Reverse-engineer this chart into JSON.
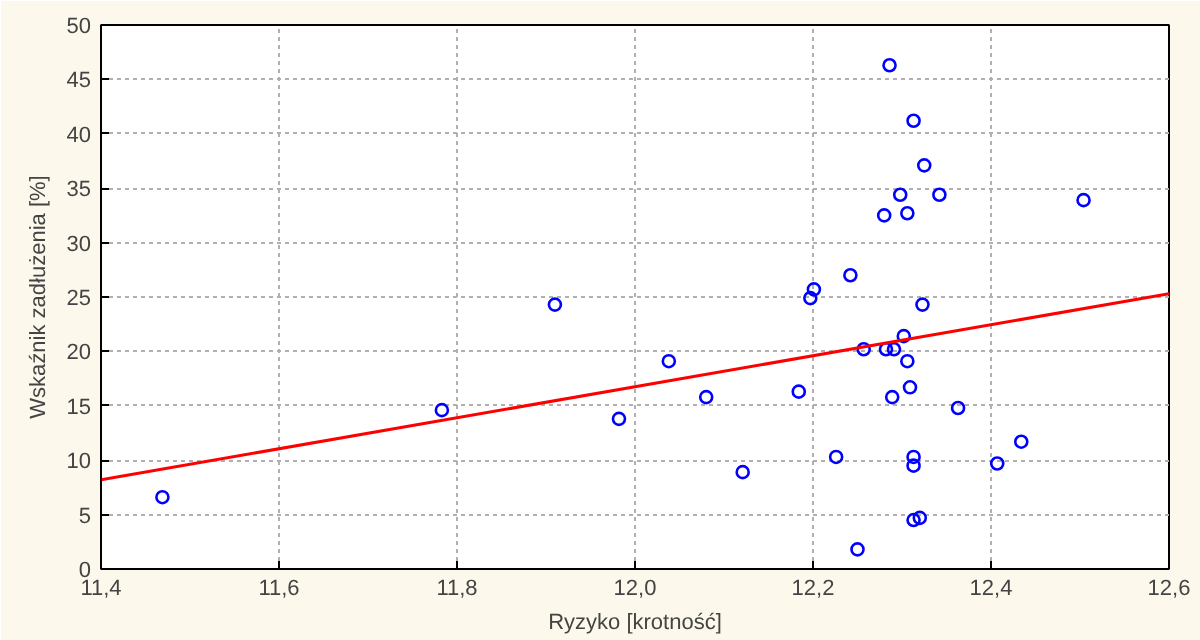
{
  "chart_data": {
    "type": "scatter",
    "xlabel": "Ryzyko [krotność]",
    "ylabel": "Wskaźnik zadłużenia [%]",
    "xlim": [
      11.4,
      12.6
    ],
    "ylim": [
      0,
      50
    ],
    "xticks": [
      {
        "value": 11.4,
        "label": "11,4"
      },
      {
        "value": 11.6,
        "label": "11,6"
      },
      {
        "value": 11.8,
        "label": "11,8"
      },
      {
        "value": 12.0,
        "label": "12,0"
      },
      {
        "value": 12.2,
        "label": "12,2"
      },
      {
        "value": 12.4,
        "label": "12,4"
      },
      {
        "value": 12.6,
        "label": "12,6"
      }
    ],
    "yticks": [
      0,
      5,
      10,
      15,
      20,
      25,
      30,
      35,
      40,
      45,
      50
    ],
    "grid": true,
    "series": [
      {
        "marker": "circle",
        "color": "#0000ff",
        "x": [
          11.469,
          11.783,
          11.91,
          11.982,
          12.038,
          12.08,
          12.121,
          12.184,
          12.197,
          12.201,
          12.226,
          12.242,
          12.25,
          12.257,
          12.28,
          12.282,
          12.286,
          12.289,
          12.291,
          12.298,
          12.302,
          12.306,
          12.306,
          12.309,
          12.313,
          12.313,
          12.313,
          12.313,
          12.32,
          12.323,
          12.325,
          12.342,
          12.363,
          12.407,
          12.434,
          12.504
        ],
        "values": [
          6.6,
          14.6,
          24.3,
          13.8,
          19.1,
          15.8,
          8.9,
          16.3,
          24.9,
          25.7,
          10.3,
          27.0,
          1.8,
          20.2,
          32.5,
          20.2,
          46.3,
          15.8,
          20.2,
          34.4,
          21.4,
          32.7,
          19.1,
          16.7,
          41.2,
          10.3,
          9.5,
          4.5,
          4.7,
          24.3,
          37.1,
          34.4,
          14.8,
          9.7,
          11.7,
          33.9
        ]
      },
      {
        "type": "line",
        "marker": "none",
        "color": "#ff0000",
        "x": [
          11.4,
          12.6
        ],
        "values": [
          8.2,
          25.3
        ]
      }
    ]
  }
}
